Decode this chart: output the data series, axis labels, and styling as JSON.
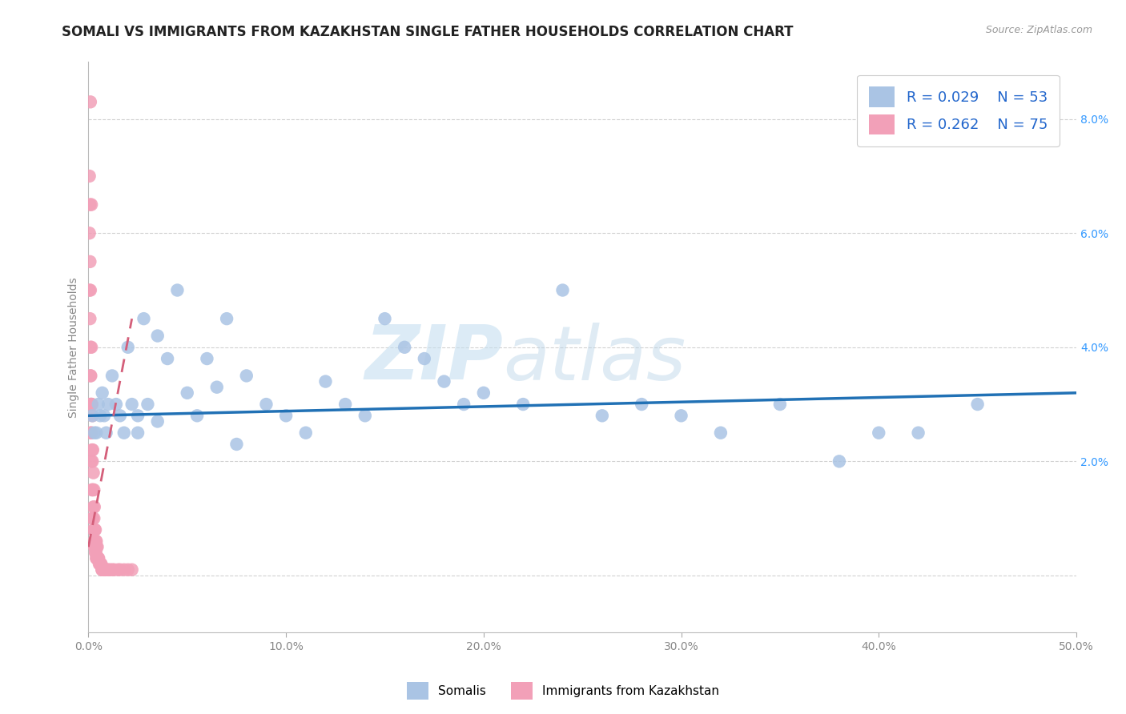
{
  "title": "SOMALI VS IMMIGRANTS FROM KAZAKHSTAN SINGLE FATHER HOUSEHOLDS CORRELATION CHART",
  "source_text": "Source: ZipAtlas.com",
  "ylabel": "Single Father Households",
  "xlim": [
    0.0,
    0.5
  ],
  "ylim": [
    -0.01,
    0.09
  ],
  "xtick_vals": [
    0.0,
    0.1,
    0.2,
    0.3,
    0.4,
    0.5
  ],
  "ytick_vals": [
    0.0,
    0.02,
    0.04,
    0.06,
    0.08
  ],
  "ytick_labels": [
    "",
    "2.0%",
    "4.0%",
    "6.0%",
    "8.0%"
  ],
  "xtick_labels": [
    "0.0%",
    "10.0%",
    "20.0%",
    "30.0%",
    "40.0%",
    "50.0%"
  ],
  "legend_blue_label": "Somalis",
  "legend_pink_label": "Immigrants from Kazakhstan",
  "R_blue": 0.029,
  "N_blue": 53,
  "R_pink": 0.262,
  "N_pink": 75,
  "blue_color": "#AAC4E4",
  "pink_color": "#F2A0B8",
  "blue_line_color": "#2171b5",
  "pink_line_color": "#d45f7a",
  "watermark_left": "ZIP",
  "watermark_right": "atlas",
  "title_fontsize": 12,
  "axis_label_fontsize": 10,
  "tick_fontsize": 10,
  "somali_x": [
    0.002,
    0.003,
    0.004,
    0.005,
    0.006,
    0.007,
    0.008,
    0.009,
    0.01,
    0.012,
    0.014,
    0.016,
    0.018,
    0.02,
    0.022,
    0.025,
    0.028,
    0.03,
    0.035,
    0.04,
    0.045,
    0.05,
    0.055,
    0.06,
    0.065,
    0.07,
    0.08,
    0.09,
    0.1,
    0.11,
    0.12,
    0.13,
    0.14,
    0.15,
    0.16,
    0.17,
    0.18,
    0.19,
    0.2,
    0.22,
    0.24,
    0.26,
    0.28,
    0.3,
    0.32,
    0.35,
    0.38,
    0.4,
    0.42,
    0.45,
    0.025,
    0.035,
    0.075
  ],
  "somali_y": [
    0.028,
    0.025,
    0.025,
    0.03,
    0.028,
    0.032,
    0.028,
    0.025,
    0.03,
    0.035,
    0.03,
    0.028,
    0.025,
    0.04,
    0.03,
    0.028,
    0.045,
    0.03,
    0.042,
    0.038,
    0.05,
    0.032,
    0.028,
    0.038,
    0.033,
    0.045,
    0.035,
    0.03,
    0.028,
    0.025,
    0.034,
    0.03,
    0.028,
    0.045,
    0.04,
    0.038,
    0.034,
    0.03,
    0.032,
    0.03,
    0.05,
    0.028,
    0.03,
    0.028,
    0.025,
    0.03,
    0.02,
    0.025,
    0.025,
    0.03,
    0.025,
    0.027,
    0.023
  ],
  "kaz_x": [
    0.0005,
    0.0005,
    0.0005,
    0.0008,
    0.0008,
    0.0008,
    0.001,
    0.001,
    0.001,
    0.001,
    0.0012,
    0.0012,
    0.0012,
    0.0015,
    0.0015,
    0.0015,
    0.0015,
    0.0018,
    0.0018,
    0.0018,
    0.002,
    0.002,
    0.002,
    0.002,
    0.0022,
    0.0022,
    0.0022,
    0.0025,
    0.0025,
    0.0025,
    0.0028,
    0.0028,
    0.0028,
    0.003,
    0.003,
    0.003,
    0.0032,
    0.0032,
    0.0035,
    0.0035,
    0.0038,
    0.0038,
    0.004,
    0.004,
    0.0042,
    0.0042,
    0.0045,
    0.0045,
    0.0048,
    0.005,
    0.0052,
    0.0055,
    0.0058,
    0.006,
    0.0062,
    0.0065,
    0.0068,
    0.007,
    0.0072,
    0.0075,
    0.008,
    0.0085,
    0.009,
    0.0095,
    0.01,
    0.011,
    0.012,
    0.013,
    0.015,
    0.016,
    0.018,
    0.02,
    0.022,
    0.001,
    0.0015
  ],
  "kaz_y": [
    0.06,
    0.07,
    0.05,
    0.055,
    0.045,
    0.065,
    0.035,
    0.04,
    0.05,
    0.03,
    0.025,
    0.03,
    0.035,
    0.02,
    0.025,
    0.03,
    0.04,
    0.015,
    0.022,
    0.03,
    0.01,
    0.015,
    0.02,
    0.028,
    0.01,
    0.015,
    0.022,
    0.008,
    0.012,
    0.018,
    0.006,
    0.01,
    0.015,
    0.005,
    0.008,
    0.012,
    0.005,
    0.008,
    0.004,
    0.008,
    0.004,
    0.006,
    0.003,
    0.006,
    0.003,
    0.005,
    0.003,
    0.005,
    0.003,
    0.003,
    0.003,
    0.002,
    0.002,
    0.002,
    0.002,
    0.002,
    0.001,
    0.001,
    0.001,
    0.001,
    0.001,
    0.001,
    0.001,
    0.001,
    0.001,
    0.001,
    0.001,
    0.001,
    0.001,
    0.001,
    0.001,
    0.001,
    0.001,
    0.083,
    0.065
  ],
  "blue_line_x": [
    0.0,
    0.5
  ],
  "blue_line_y": [
    0.028,
    0.032
  ],
  "pink_line_x": [
    0.0,
    0.022
  ],
  "pink_line_y": [
    0.005,
    0.045
  ]
}
